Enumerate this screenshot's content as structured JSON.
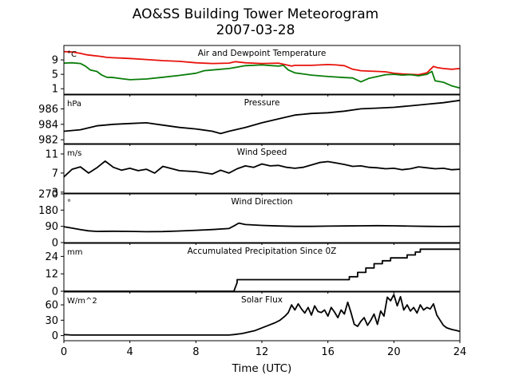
{
  "chart_data": {
    "type": "line",
    "title": "AO&SS Building Tower Meteorogram",
    "subtitle": "2007-03-28",
    "xlabel": "Time (UTC)",
    "xlim": [
      0,
      24
    ],
    "xticks": [
      0,
      4,
      8,
      12,
      16,
      20,
      24
    ],
    "grid": false,
    "panels": [
      {
        "id": "temperature",
        "title": "Air and Dewpoint Temperature",
        "unit": "°C",
        "ylim": [
          -0.5,
          13
        ],
        "yticks": [
          1,
          5,
          9
        ],
        "series": [
          {
            "color": "#e8120c",
            "x": [
              0,
              0.5,
              1,
              1.4,
              1.8,
              2.2,
              2.6,
              3,
              3.5,
              4,
              5,
              6,
              7,
              8,
              9,
              10,
              10.4,
              11,
              12,
              13,
              13.8,
              14,
              15,
              16,
              16.5,
              17,
              17.5,
              18,
              18.5,
              19,
              19.5,
              20,
              20.5,
              21,
              21.5,
              22,
              22.4,
              22.6,
              23,
              23.5,
              24
            ],
            "y": [
              11.3,
              11.2,
              10.8,
              10.4,
              10.2,
              10.0,
              9.7,
              9.6,
              9.5,
              9.4,
              9.1,
              8.8,
              8.6,
              8.2,
              8.0,
              8.1,
              8.5,
              8.2,
              8.0,
              8.1,
              7.3,
              7.5,
              7.5,
              7.7,
              7.6,
              7.4,
              6.4,
              6.0,
              5.9,
              5.8,
              5.7,
              5.3,
              5.1,
              5.0,
              4.9,
              5.4,
              7.2,
              6.9,
              6.6,
              6.4,
              6.6
            ]
          },
          {
            "color": "#0a7d0a",
            "x": [
              0,
              0.5,
              1,
              1.3,
              1.6,
              2,
              2.3,
              2.6,
              3,
              3.5,
              4,
              5,
              6,
              7,
              8,
              8.5,
              9,
              10,
              10.5,
              11,
              12,
              13,
              13.3,
              13.6,
              14,
              15,
              16,
              17,
              17.5,
              18,
              18.5,
              19,
              19.5,
              20,
              20.5,
              21,
              21.5,
              22,
              22.3,
              22.5,
              23,
              23.5,
              24
            ],
            "y": [
              8.1,
              8.2,
              8.0,
              7.3,
              6.2,
              5.8,
              4.8,
              4.2,
              4.1,
              3.8,
              3.5,
              3.7,
              4.2,
              4.7,
              5.3,
              6.0,
              6.2,
              6.6,
              7.0,
              7.4,
              7.6,
              7.3,
              7.5,
              6.2,
              5.4,
              4.8,
              4.4,
              4.1,
              4.0,
              2.9,
              3.9,
              4.4,
              4.9,
              5.0,
              4.8,
              4.9,
              4.6,
              5.0,
              5.8,
              3.2,
              2.8,
              1.8,
              1.2
            ]
          }
        ]
      },
      {
        "id": "pressure",
        "title": "Pressure",
        "unit": "hPa",
        "ylim": [
          981.5,
          987.8
        ],
        "yticks": [
          982,
          984,
          986
        ],
        "series": [
          {
            "color": "#000000",
            "x": [
              0,
              1,
              2,
              3,
              4,
              5,
              6,
              7,
              8,
              9,
              9.5,
              10,
              11,
              12,
              13,
              14,
              15,
              16,
              17,
              18,
              19,
              20,
              21,
              22,
              23,
              24
            ],
            "y": [
              983.1,
              983.3,
              983.8,
              984.0,
              984.1,
              984.2,
              983.9,
              983.6,
              983.4,
              983.1,
              982.8,
              983.1,
              983.6,
              984.2,
              984.7,
              985.2,
              985.4,
              985.5,
              985.7,
              986.0,
              986.1,
              986.2,
              986.4,
              986.6,
              986.8,
              987.1
            ]
          }
        ]
      },
      {
        "id": "wind_speed",
        "title": "Wind Speed",
        "unit": "m/s",
        "ylim": [
          2.8,
          13
        ],
        "yticks": [
          3,
          7,
          11
        ],
        "series": [
          {
            "color": "#000000",
            "x": [
              0,
              0.5,
              1,
              1.5,
              2,
              2.5,
              3,
              3.5,
              4,
              4.5,
              5,
              5.5,
              6,
              7,
              8,
              9,
              9.5,
              10,
              10.5,
              11,
              11.5,
              12,
              12.5,
              13,
              13.5,
              14,
              14.5,
              15,
              15.5,
              16,
              16.5,
              17,
              17.5,
              18,
              18.5,
              19,
              19.5,
              20,
              20.5,
              21,
              21.5,
              22,
              22.5,
              23,
              23.5,
              24
            ],
            "y": [
              6.2,
              7.8,
              8.3,
              7.0,
              8.1,
              9.5,
              8.2,
              7.6,
              8.0,
              7.5,
              7.8,
              7.0,
              8.4,
              7.5,
              7.3,
              6.8,
              7.6,
              7.0,
              7.9,
              8.5,
              8.2,
              8.9,
              8.5,
              8.6,
              8.2,
              8.0,
              8.2,
              8.7,
              9.2,
              9.4,
              9.1,
              8.8,
              8.4,
              8.5,
              8.2,
              8.1,
              7.9,
              8.0,
              7.7,
              7.9,
              8.3,
              8.1,
              7.9,
              8.0,
              7.7,
              7.8
            ]
          }
        ]
      },
      {
        "id": "wind_direction",
        "title": "Wind Direction",
        "unit": "°",
        "ylim": [
          0,
          270
        ],
        "yticks": [
          0,
          90,
          180,
          270
        ],
        "series": [
          {
            "color": "#000000",
            "x": [
              0,
              0.5,
              1,
              1.5,
              2,
              3,
              4,
              5,
              6,
              7,
              8,
              9,
              10,
              10.3,
              10.6,
              11,
              12,
              13,
              14,
              15,
              16,
              17,
              18,
              19,
              20,
              21,
              22,
              23,
              24
            ],
            "y": [
              88,
              80,
              72,
              65,
              62,
              63,
              62,
              60,
              61,
              64,
              68,
              72,
              78,
              92,
              108,
              100,
              95,
              92,
              90,
              90,
              91,
              92,
              93,
              94,
              93,
              91,
              90,
              89,
              90
            ]
          }
        ]
      },
      {
        "id": "precipitation",
        "title": "Accumulated Precipitation Since 0Z",
        "unit": "mm",
        "ylim": [
          0,
          33
        ],
        "yticks": [
          0,
          12,
          24
        ],
        "series": [
          {
            "color": "#000000",
            "x": [
              0,
              10.3,
              10.5,
              10.5,
              17.3,
              17.3,
              17.8,
              17.8,
              18.3,
              18.3,
              18.8,
              18.8,
              19.3,
              19.3,
              19.8,
              19.8,
              20.8,
              20.8,
              21.3,
              21.3,
              21.6,
              21.6,
              24
            ],
            "y": [
              0,
              0,
              6,
              8,
              8,
              10,
              10,
              13,
              13,
              16,
              16,
              19,
              19,
              21,
              21,
              23,
              23,
              25,
              25,
              27,
              27,
              29,
              29
            ]
          }
        ]
      },
      {
        "id": "solar_flux",
        "title": "Solar Flux",
        "unit": "W/m^2",
        "ylim": [
          -10,
          85
        ],
        "yticks": [
          0,
          30,
          60
        ],
        "series": [
          {
            "color": "#000000",
            "x": [
              0,
              0.5,
              2,
              4,
              6,
              8,
              10,
              10.3,
              10.8,
              11.2,
              11.6,
              12,
              12.4,
              12.8,
              13.1,
              13.4,
              13.6,
              13.8,
              14,
              14.2,
              14.4,
              14.6,
              14.8,
              15,
              15.2,
              15.4,
              15.6,
              15.8,
              16,
              16.2,
              16.4,
              16.6,
              16.8,
              17,
              17.2,
              17.4,
              17.6,
              17.8,
              18,
              18.2,
              18.4,
              18.6,
              18.8,
              19,
              19.2,
              19.4,
              19.6,
              19.8,
              20,
              20.2,
              20.4,
              20.6,
              20.8,
              21,
              21.2,
              21.4,
              21.6,
              21.8,
              22,
              22.2,
              22.4,
              22.6,
              22.8,
              23,
              23.2,
              23.5,
              23.8,
              24
            ],
            "y": [
              2,
              1,
              1,
              1,
              1,
              1,
              1,
              2,
              4,
              7,
              10,
              15,
              20,
              25,
              30,
              38,
              45,
              60,
              50,
              62,
              52,
              44,
              55,
              40,
              58,
              47,
              45,
              50,
              38,
              55,
              46,
              35,
              50,
              42,
              65,
              45,
              22,
              18,
              28,
              35,
              20,
              30,
              42,
              22,
              48,
              38,
              75,
              68,
              80,
              58,
              76,
              50,
              60,
              48,
              55,
              44,
              60,
              50,
              55,
              52,
              62,
              40,
              30,
              20,
              15,
              12,
              10,
              8
            ]
          }
        ]
      }
    ]
  }
}
